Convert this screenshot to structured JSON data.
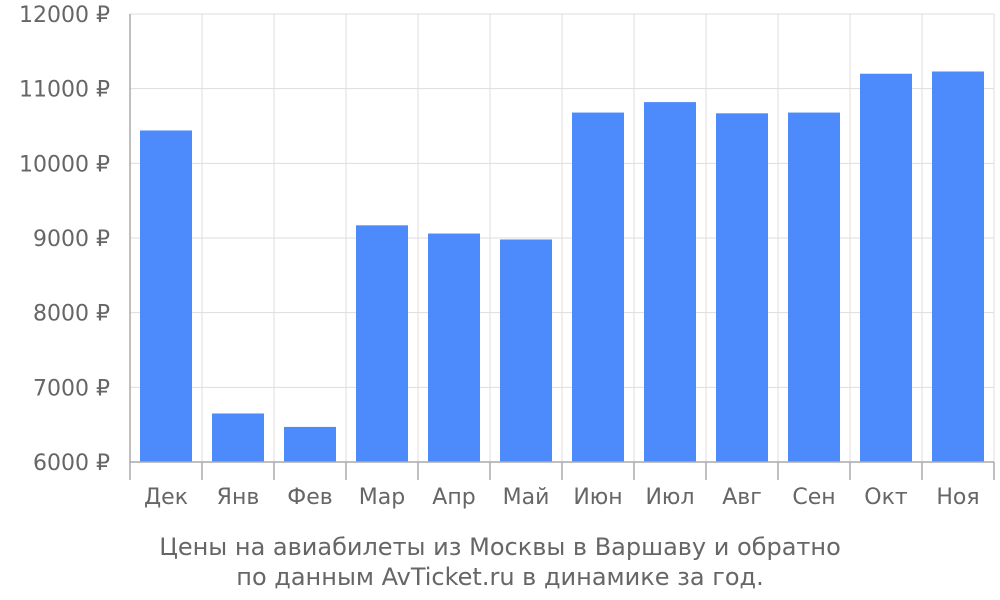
{
  "chart_data": {
    "type": "bar",
    "categories": [
      "Дек",
      "Янв",
      "Фев",
      "Мар",
      "Апр",
      "Май",
      "Июн",
      "Июл",
      "Авг",
      "Сен",
      "Окт",
      "Ноя"
    ],
    "values": [
      10440,
      6650,
      6470,
      9170,
      9060,
      8980,
      10680,
      10820,
      10670,
      10680,
      11200,
      11230
    ],
    "ylim": [
      6000,
      12000
    ],
    "y_ticks": [
      6000,
      7000,
      8000,
      9000,
      10000,
      11000,
      12000
    ],
    "y_tick_suffix": " ₽",
    "grid": true,
    "bar_color": "#4d8afc",
    "caption": [
      "Цены на авиабилеты из Москвы в Варшаву и обратно",
      "по данным AvTicket.ru в динамике за год."
    ]
  }
}
